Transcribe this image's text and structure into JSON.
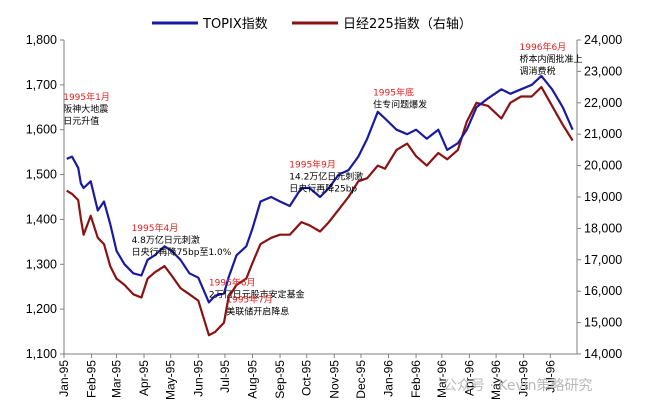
{
  "chart_data": {
    "type": "line",
    "title": "",
    "colors": {
      "topix": "#1a1aa0",
      "nikkei": "#8b1212"
    },
    "series": [
      {
        "name": "TOPIX指数",
        "axis": "left",
        "x": [
          "1995-01-04",
          "1995-01-10",
          "1995-01-17",
          "1995-01-20",
          "1995-01-23",
          "1995-01-31",
          "1995-02-08",
          "1995-02-15",
          "1995-02-22",
          "1995-03-01",
          "1995-03-10",
          "1995-03-20",
          "1995-03-29",
          "1995-04-05",
          "1995-04-13",
          "1995-04-24",
          "1995-05-02",
          "1995-05-12",
          "1995-05-22",
          "1995-06-01",
          "1995-06-13",
          "1995-06-20",
          "1995-06-30",
          "1995-07-05",
          "1995-07-14",
          "1995-07-25",
          "1995-08-01",
          "1995-08-10",
          "1995-08-22",
          "1995-09-01",
          "1995-09-12",
          "1995-09-25",
          "1995-10-04",
          "1995-10-16",
          "1995-10-26",
          "1995-11-06",
          "1995-11-17",
          "1995-11-28",
          "1995-12-08",
          "1995-12-20",
          "1995-12-28",
          "1996-01-10",
          "1996-01-22",
          "1996-02-01",
          "1996-02-13",
          "1996-02-26",
          "1996-03-07",
          "1996-03-19",
          "1996-03-29",
          "1996-04-09",
          "1996-04-22",
          "1996-05-07",
          "1996-05-17",
          "1996-05-29",
          "1996-06-10",
          "1996-06-21",
          "1996-07-03",
          "1996-07-15",
          "1996-07-26"
        ],
        "values": [
          1535,
          1540,
          1515,
          1480,
          1470,
          1485,
          1420,
          1440,
          1390,
          1330,
          1300,
          1280,
          1275,
          1310,
          1320,
          1340,
          1330,
          1310,
          1280,
          1270,
          1215,
          1230,
          1235,
          1270,
          1320,
          1340,
          1380,
          1440,
          1450,
          1440,
          1430,
          1470,
          1470,
          1450,
          1470,
          1500,
          1510,
          1540,
          1580,
          1640,
          1625,
          1600,
          1590,
          1600,
          1580,
          1600,
          1555,
          1570,
          1600,
          1650,
          1670,
          1690,
          1680,
          1690,
          1700,
          1720,
          1690,
          1650,
          1600
        ]
      },
      {
        "name": "日经225指数（右轴）",
        "axis": "right",
        "x": [
          "1995-01-04",
          "1995-01-10",
          "1995-01-17",
          "1995-01-20",
          "1995-01-23",
          "1995-01-31",
          "1995-02-08",
          "1995-02-15",
          "1995-02-22",
          "1995-03-01",
          "1995-03-10",
          "1995-03-20",
          "1995-03-29",
          "1995-04-05",
          "1995-04-13",
          "1995-04-24",
          "1995-05-02",
          "1995-05-12",
          "1995-05-22",
          "1995-06-01",
          "1995-06-13",
          "1995-06-20",
          "1995-06-30",
          "1995-07-05",
          "1995-07-14",
          "1995-07-25",
          "1995-08-01",
          "1995-08-10",
          "1995-08-22",
          "1995-09-01",
          "1995-09-12",
          "1995-09-25",
          "1995-10-04",
          "1995-10-16",
          "1995-10-26",
          "1995-11-06",
          "1995-11-17",
          "1995-11-28",
          "1995-12-08",
          "1995-12-20",
          "1995-12-28",
          "1996-01-10",
          "1996-01-22",
          "1996-02-01",
          "1996-02-13",
          "1996-02-26",
          "1996-03-07",
          "1996-03-19",
          "1996-03-29",
          "1996-04-09",
          "1996-04-22",
          "1996-05-07",
          "1996-05-17",
          "1996-05-29",
          "1996-06-10",
          "1996-06-21",
          "1996-07-03",
          "1996-07-15",
          "1996-07-26"
        ],
        "values": [
          19200,
          19100,
          18900,
          18300,
          17800,
          18400,
          17700,
          17500,
          16800,
          16400,
          16200,
          15900,
          15800,
          16400,
          16600,
          16800,
          16500,
          16100,
          15900,
          15700,
          14600,
          14700,
          15000,
          15800,
          16200,
          16400,
          16900,
          17500,
          17700,
          17800,
          17800,
          18200,
          18100,
          17900,
          18200,
          18600,
          19000,
          19500,
          19600,
          20000,
          19900,
          20500,
          20700,
          20300,
          20000,
          20400,
          20200,
          20500,
          21400,
          22000,
          21900,
          21500,
          22000,
          22200,
          22200,
          22500,
          21900,
          21300,
          20800
        ]
      }
    ],
    "xtick_labels": [
      "Jan-95",
      "Feb-95",
      "Mar-95",
      "Apr-95",
      "May-95",
      "Jun-95",
      "Jul-95",
      "Aug-95",
      "Sep-95",
      "Oct-95",
      "Nov-95",
      "Dec-95",
      "Jan-96",
      "Feb-96",
      "Mar-96",
      "Apr-96",
      "May-96",
      "Jun-96",
      "Jul-96"
    ],
    "xtick_dates": [
      "1995-01-01",
      "1995-02-01",
      "1995-03-01",
      "1995-04-01",
      "1995-05-01",
      "1995-06-01",
      "1995-07-01",
      "1995-08-01",
      "1995-09-01",
      "1995-10-01",
      "1995-11-01",
      "1995-12-01",
      "1996-01-01",
      "1996-02-01",
      "1996-03-01",
      "1996-04-01",
      "1996-05-01",
      "1996-06-01",
      "1996-07-01"
    ],
    "xlim": [
      "1995-01-01",
      "1996-07-31"
    ],
    "ylim_left": [
      1100,
      1800
    ],
    "ylim_right": [
      14000,
      24000
    ],
    "yticks_left": [
      "1,100",
      "1,200",
      "1,300",
      "1,400",
      "1,500",
      "1,600",
      "1,700",
      "1,800"
    ],
    "yticks_right": [
      "14,000",
      "15,000",
      "16,000",
      "17,000",
      "18,000",
      "19,000",
      "20,000",
      "21,000",
      "22,000",
      "23,000",
      "24,000"
    ],
    "grid": false,
    "legend_position": "top-center",
    "annotations": [
      {
        "date": "1995-01-17",
        "value": 1515,
        "red": "1995年1月",
        "lines": [
          "阪神大地震",
          "日元升值"
        ]
      },
      {
        "date": "1995-04-14",
        "value": 1330,
        "red": "1995年4月",
        "lines": [
          "4.8万亿日元刺激",
          "日央行再降75bp至1.0%"
        ]
      },
      {
        "date": "1995-06-13",
        "value": 1215,
        "red": "1995年6月",
        "lines": [
          "2万亿日元股市安定基金"
        ]
      },
      {
        "date": "1995-07-07",
        "value": 1270,
        "red": "1995年7月",
        "lines": [
          "美联储开启降息"
        ]
      },
      {
        "date": "1995-09-08",
        "value": 1440,
        "red": "1995年9月",
        "lines": [
          "14.2万亿日元刺激",
          "日央行再降25bp"
        ]
      },
      {
        "date": "1995-12-18",
        "value": 1630,
        "red": "1995年底",
        "lines": [
          "住专问题爆发"
        ]
      },
      {
        "date": "1996-06-20",
        "value": 1720,
        "red": "1996年6月",
        "lines": [
          "桥本内阁批准上",
          "调消费税"
        ]
      }
    ]
  },
  "watermark": "公众号 · Kevin策略研究"
}
